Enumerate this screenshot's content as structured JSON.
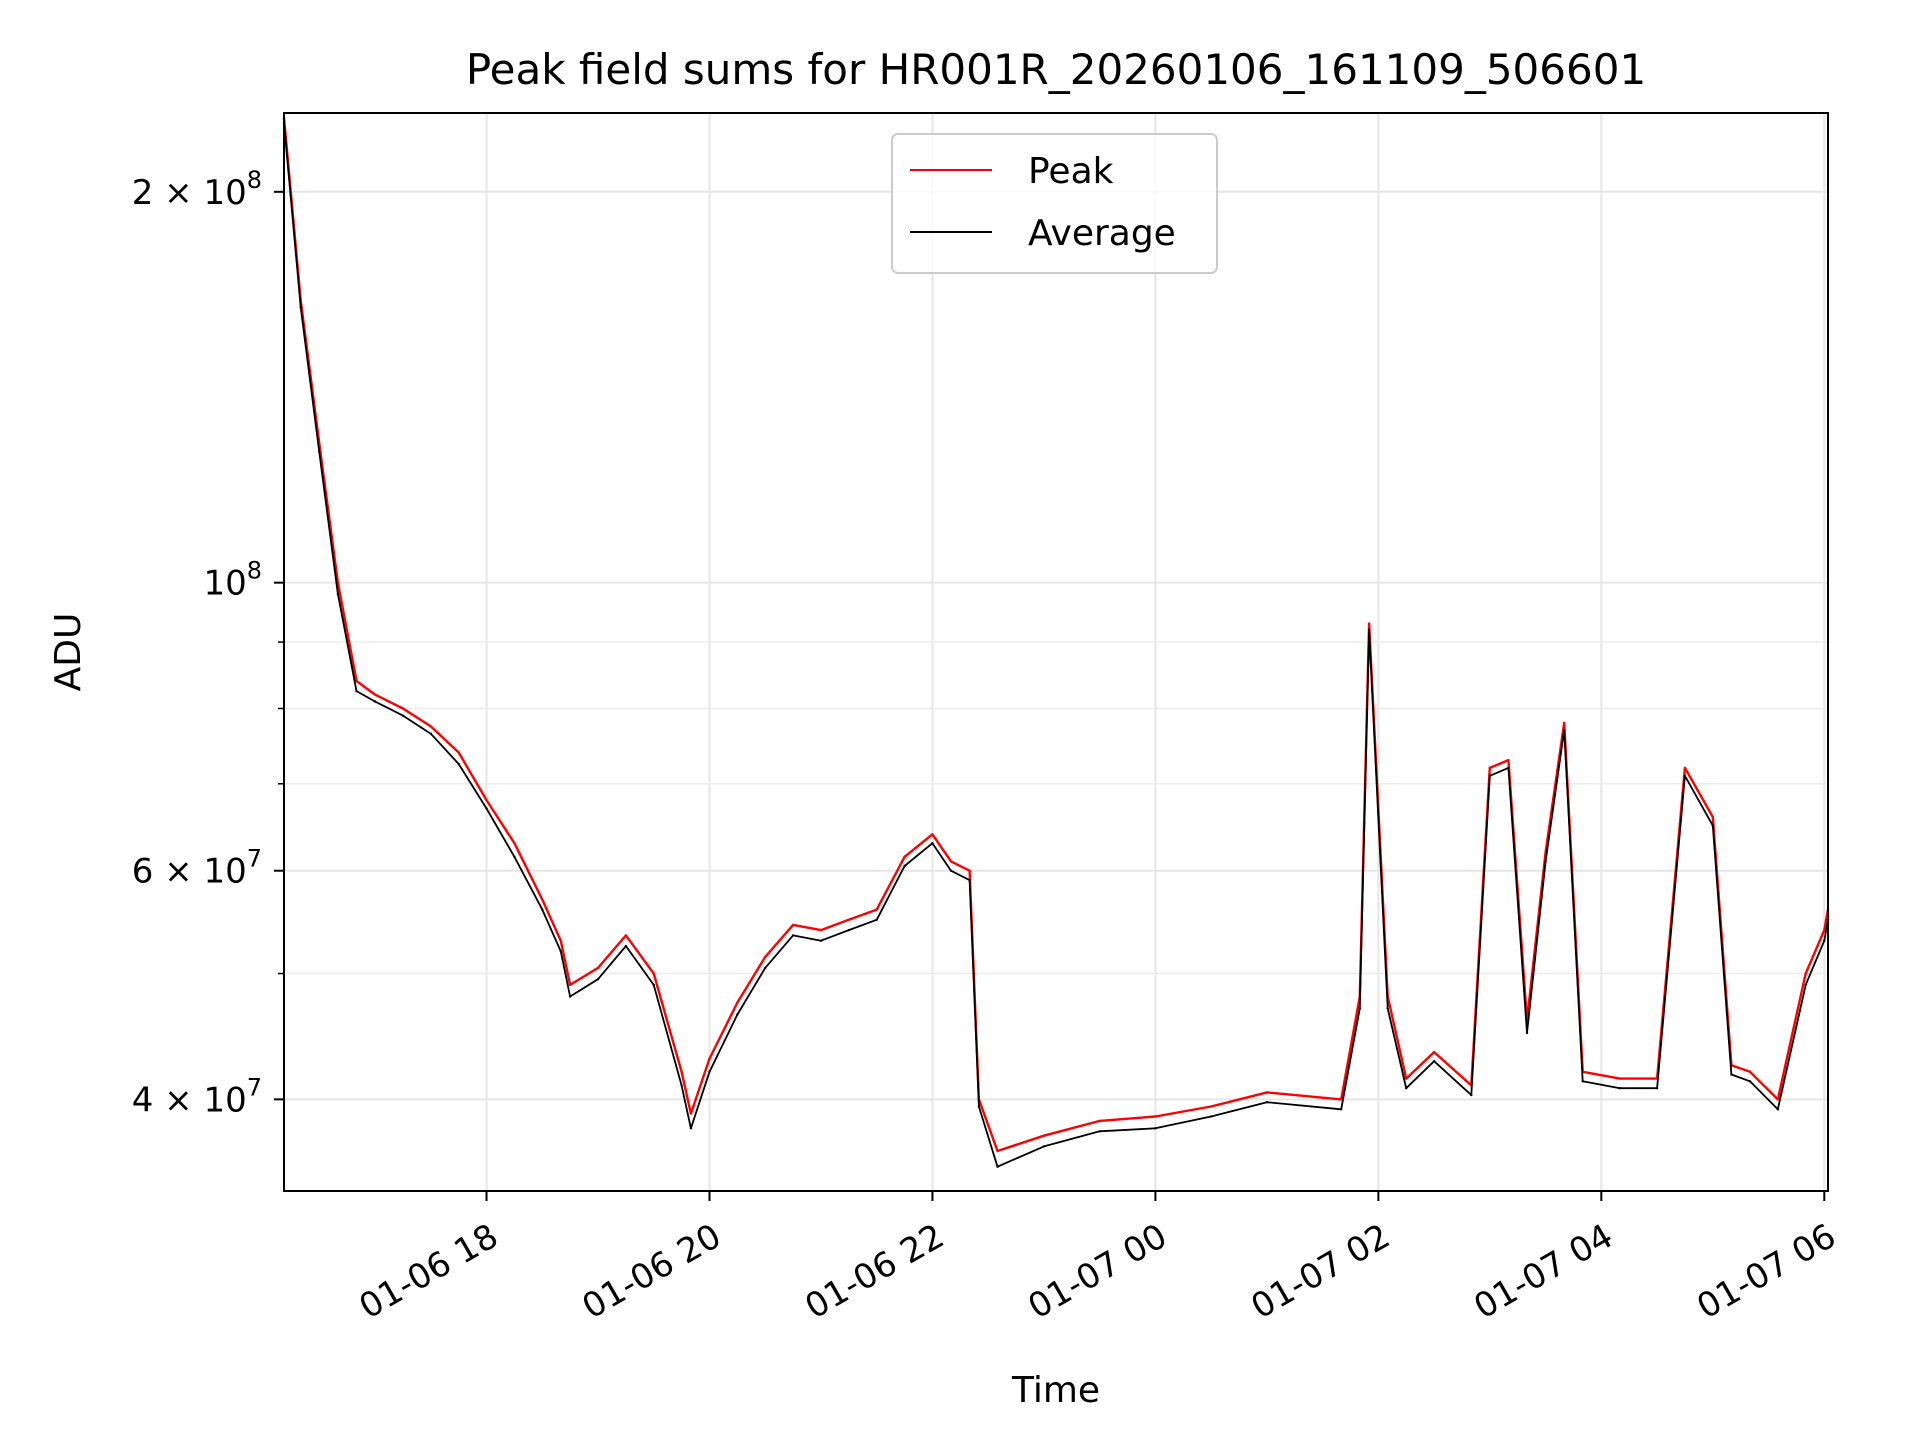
{
  "chart_data": {
    "type": "line",
    "title": "Peak field sums for HR001R_20260106_161109_506601",
    "xlabel": "Time",
    "ylabel": "ADU",
    "y_scale": "log",
    "ylim": [
      34000000,
      230000000
    ],
    "xlim": [
      "2026-01-06 16:11",
      "2026-01-07 06:02"
    ],
    "grid": true,
    "legend": {
      "position": "top-center"
    },
    "x_ticks": [
      {
        "value": "2026-01-06 18:00",
        "label": "01-06 18"
      },
      {
        "value": "2026-01-06 20:00",
        "label": "01-06 20"
      },
      {
        "value": "2026-01-06 22:00",
        "label": "01-06 22"
      },
      {
        "value": "2026-01-07 00:00",
        "label": "01-07 00"
      },
      {
        "value": "2026-01-07 02:00",
        "label": "01-07 02"
      },
      {
        "value": "2026-01-07 04:00",
        "label": "01-07 04"
      },
      {
        "value": "2026-01-07 06:00",
        "label": "01-07 06"
      }
    ],
    "y_ticks": [
      {
        "value": 40000000,
        "base": "4",
        "exp": "7"
      },
      {
        "value": 60000000,
        "base": "6",
        "exp": "7"
      },
      {
        "value": 100000000,
        "base": "",
        "exp": "8"
      },
      {
        "value": 200000000,
        "base": "2",
        "exp": "8"
      }
    ],
    "y_minor_ticks": [
      50000000,
      70000000,
      80000000,
      90000000
    ],
    "series": [
      {
        "name": "Peak",
        "color": "#ff0000",
        "points": [
          [
            "2026-01-06 16:11",
            228000000
          ],
          [
            "2026-01-06 16:20",
            165000000
          ],
          [
            "2026-01-06 16:30",
            128000000
          ],
          [
            "2026-01-06 16:40",
            100000000
          ],
          [
            "2026-01-06 16:50",
            84000000
          ],
          [
            "2026-01-06 17:00",
            82000000
          ],
          [
            "2026-01-06 17:15",
            80000000
          ],
          [
            "2026-01-06 17:30",
            77500000
          ],
          [
            "2026-01-06 17:45",
            74000000
          ],
          [
            "2026-01-06 18:00",
            68000000
          ],
          [
            "2026-01-06 18:15",
            63000000
          ],
          [
            "2026-01-06 18:30",
            57000000
          ],
          [
            "2026-01-06 18:40",
            53000000
          ],
          [
            "2026-01-06 18:45",
            49000000
          ],
          [
            "2026-01-06 19:00",
            50500000
          ],
          [
            "2026-01-06 19:15",
            53500000
          ],
          [
            "2026-01-06 19:30",
            50000000
          ],
          [
            "2026-01-06 19:45",
            42000000
          ],
          [
            "2026-01-06 19:50",
            39000000
          ],
          [
            "2026-01-06 20:00",
            43000000
          ],
          [
            "2026-01-06 20:15",
            47500000
          ],
          [
            "2026-01-06 20:30",
            51500000
          ],
          [
            "2026-01-06 20:45",
            54500000
          ],
          [
            "2026-01-06 21:00",
            54000000
          ],
          [
            "2026-01-06 21:15",
            55000000
          ],
          [
            "2026-01-06 21:30",
            56000000
          ],
          [
            "2026-01-06 21:45",
            61500000
          ],
          [
            "2026-01-06 22:00",
            64000000
          ],
          [
            "2026-01-06 22:10",
            61000000
          ],
          [
            "2026-01-06 22:20",
            60000000
          ],
          [
            "2026-01-06 22:25",
            40000000
          ],
          [
            "2026-01-06 22:35",
            36500000
          ],
          [
            "2026-01-06 23:00",
            37500000
          ],
          [
            "2026-01-06 23:30",
            38500000
          ],
          [
            "2026-01-07 00:00",
            38800000
          ],
          [
            "2026-01-07 00:30",
            39500000
          ],
          [
            "2026-01-07 01:00",
            40500000
          ],
          [
            "2026-01-07 01:40",
            40000000
          ],
          [
            "2026-01-07 01:50",
            48000000
          ],
          [
            "2026-01-07 01:55",
            93000000
          ],
          [
            "2026-01-07 02:05",
            48000000
          ],
          [
            "2026-01-07 02:15",
            41500000
          ],
          [
            "2026-01-07 02:30",
            43500000
          ],
          [
            "2026-01-07 02:50",
            41000000
          ],
          [
            "2026-01-07 03:00",
            72000000
          ],
          [
            "2026-01-07 03:10",
            73000000
          ],
          [
            "2026-01-07 03:20",
            46000000
          ],
          [
            "2026-01-07 03:30",
            62000000
          ],
          [
            "2026-01-07 03:40",
            78000000
          ],
          [
            "2026-01-07 03:50",
            42000000
          ],
          [
            "2026-01-07 04:10",
            41500000
          ],
          [
            "2026-01-07 04:30",
            41500000
          ],
          [
            "2026-01-07 04:45",
            72000000
          ],
          [
            "2026-01-07 05:00",
            66000000
          ],
          [
            "2026-01-07 05:10",
            42500000
          ],
          [
            "2026-01-07 05:20",
            42000000
          ],
          [
            "2026-01-07 05:35",
            40000000
          ],
          [
            "2026-01-07 05:50",
            50000000
          ],
          [
            "2026-01-07 06:00",
            54000000
          ],
          [
            "2026-01-07 06:02",
            56000000
          ]
        ]
      },
      {
        "name": "Average",
        "color": "#000000",
        "points": [
          [
            "2026-01-06 16:11",
            226000000
          ],
          [
            "2026-01-06 16:20",
            163000000
          ],
          [
            "2026-01-06 16:30",
            126000000
          ],
          [
            "2026-01-06 16:40",
            98000000
          ],
          [
            "2026-01-06 16:50",
            82500000
          ],
          [
            "2026-01-06 17:00",
            81000000
          ],
          [
            "2026-01-06 17:15",
            79000000
          ],
          [
            "2026-01-06 17:30",
            76500000
          ],
          [
            "2026-01-06 17:45",
            72500000
          ],
          [
            "2026-01-06 18:00",
            67000000
          ],
          [
            "2026-01-06 18:15",
            61500000
          ],
          [
            "2026-01-06 18:30",
            56000000
          ],
          [
            "2026-01-06 18:40",
            52000000
          ],
          [
            "2026-01-06 18:45",
            48000000
          ],
          [
            "2026-01-06 19:00",
            49500000
          ],
          [
            "2026-01-06 19:15",
            52500000
          ],
          [
            "2026-01-06 19:30",
            49000000
          ],
          [
            "2026-01-06 19:45",
            41000000
          ],
          [
            "2026-01-06 19:50",
            38000000
          ],
          [
            "2026-01-06 20:00",
            42000000
          ],
          [
            "2026-01-06 20:15",
            46500000
          ],
          [
            "2026-01-06 20:30",
            50500000
          ],
          [
            "2026-01-06 20:45",
            53500000
          ],
          [
            "2026-01-06 21:00",
            53000000
          ],
          [
            "2026-01-06 21:15",
            54000000
          ],
          [
            "2026-01-06 21:30",
            55000000
          ],
          [
            "2026-01-06 21:45",
            60500000
          ],
          [
            "2026-01-06 22:00",
            63000000
          ],
          [
            "2026-01-06 22:10",
            60000000
          ],
          [
            "2026-01-06 22:20",
            59000000
          ],
          [
            "2026-01-06 22:25",
            39500000
          ],
          [
            "2026-01-06 22:35",
            35500000
          ],
          [
            "2026-01-06 23:00",
            36800000
          ],
          [
            "2026-01-06 23:30",
            37800000
          ],
          [
            "2026-01-07 00:00",
            38000000
          ],
          [
            "2026-01-07 00:30",
            38800000
          ],
          [
            "2026-01-07 01:00",
            39800000
          ],
          [
            "2026-01-07 01:40",
            39300000
          ],
          [
            "2026-01-07 01:50",
            47000000
          ],
          [
            "2026-01-07 01:55",
            92000000
          ],
          [
            "2026-01-07 02:05",
            47000000
          ],
          [
            "2026-01-07 02:15",
            40800000
          ],
          [
            "2026-01-07 02:30",
            42800000
          ],
          [
            "2026-01-07 02:50",
            40300000
          ],
          [
            "2026-01-07 03:00",
            71000000
          ],
          [
            "2026-01-07 03:10",
            72000000
          ],
          [
            "2026-01-07 03:20",
            45000000
          ],
          [
            "2026-01-07 03:30",
            61000000
          ],
          [
            "2026-01-07 03:40",
            77000000
          ],
          [
            "2026-01-07 03:50",
            41300000
          ],
          [
            "2026-01-07 04:10",
            40800000
          ],
          [
            "2026-01-07 04:30",
            40800000
          ],
          [
            "2026-01-07 04:45",
            71000000
          ],
          [
            "2026-01-07 05:00",
            65000000
          ],
          [
            "2026-01-07 05:10",
            41800000
          ],
          [
            "2026-01-07 05:20",
            41300000
          ],
          [
            "2026-01-07 05:35",
            39300000
          ],
          [
            "2026-01-07 05:50",
            49000000
          ],
          [
            "2026-01-07 06:00",
            53000000
          ],
          [
            "2026-01-07 06:02",
            55000000
          ]
        ]
      }
    ]
  }
}
